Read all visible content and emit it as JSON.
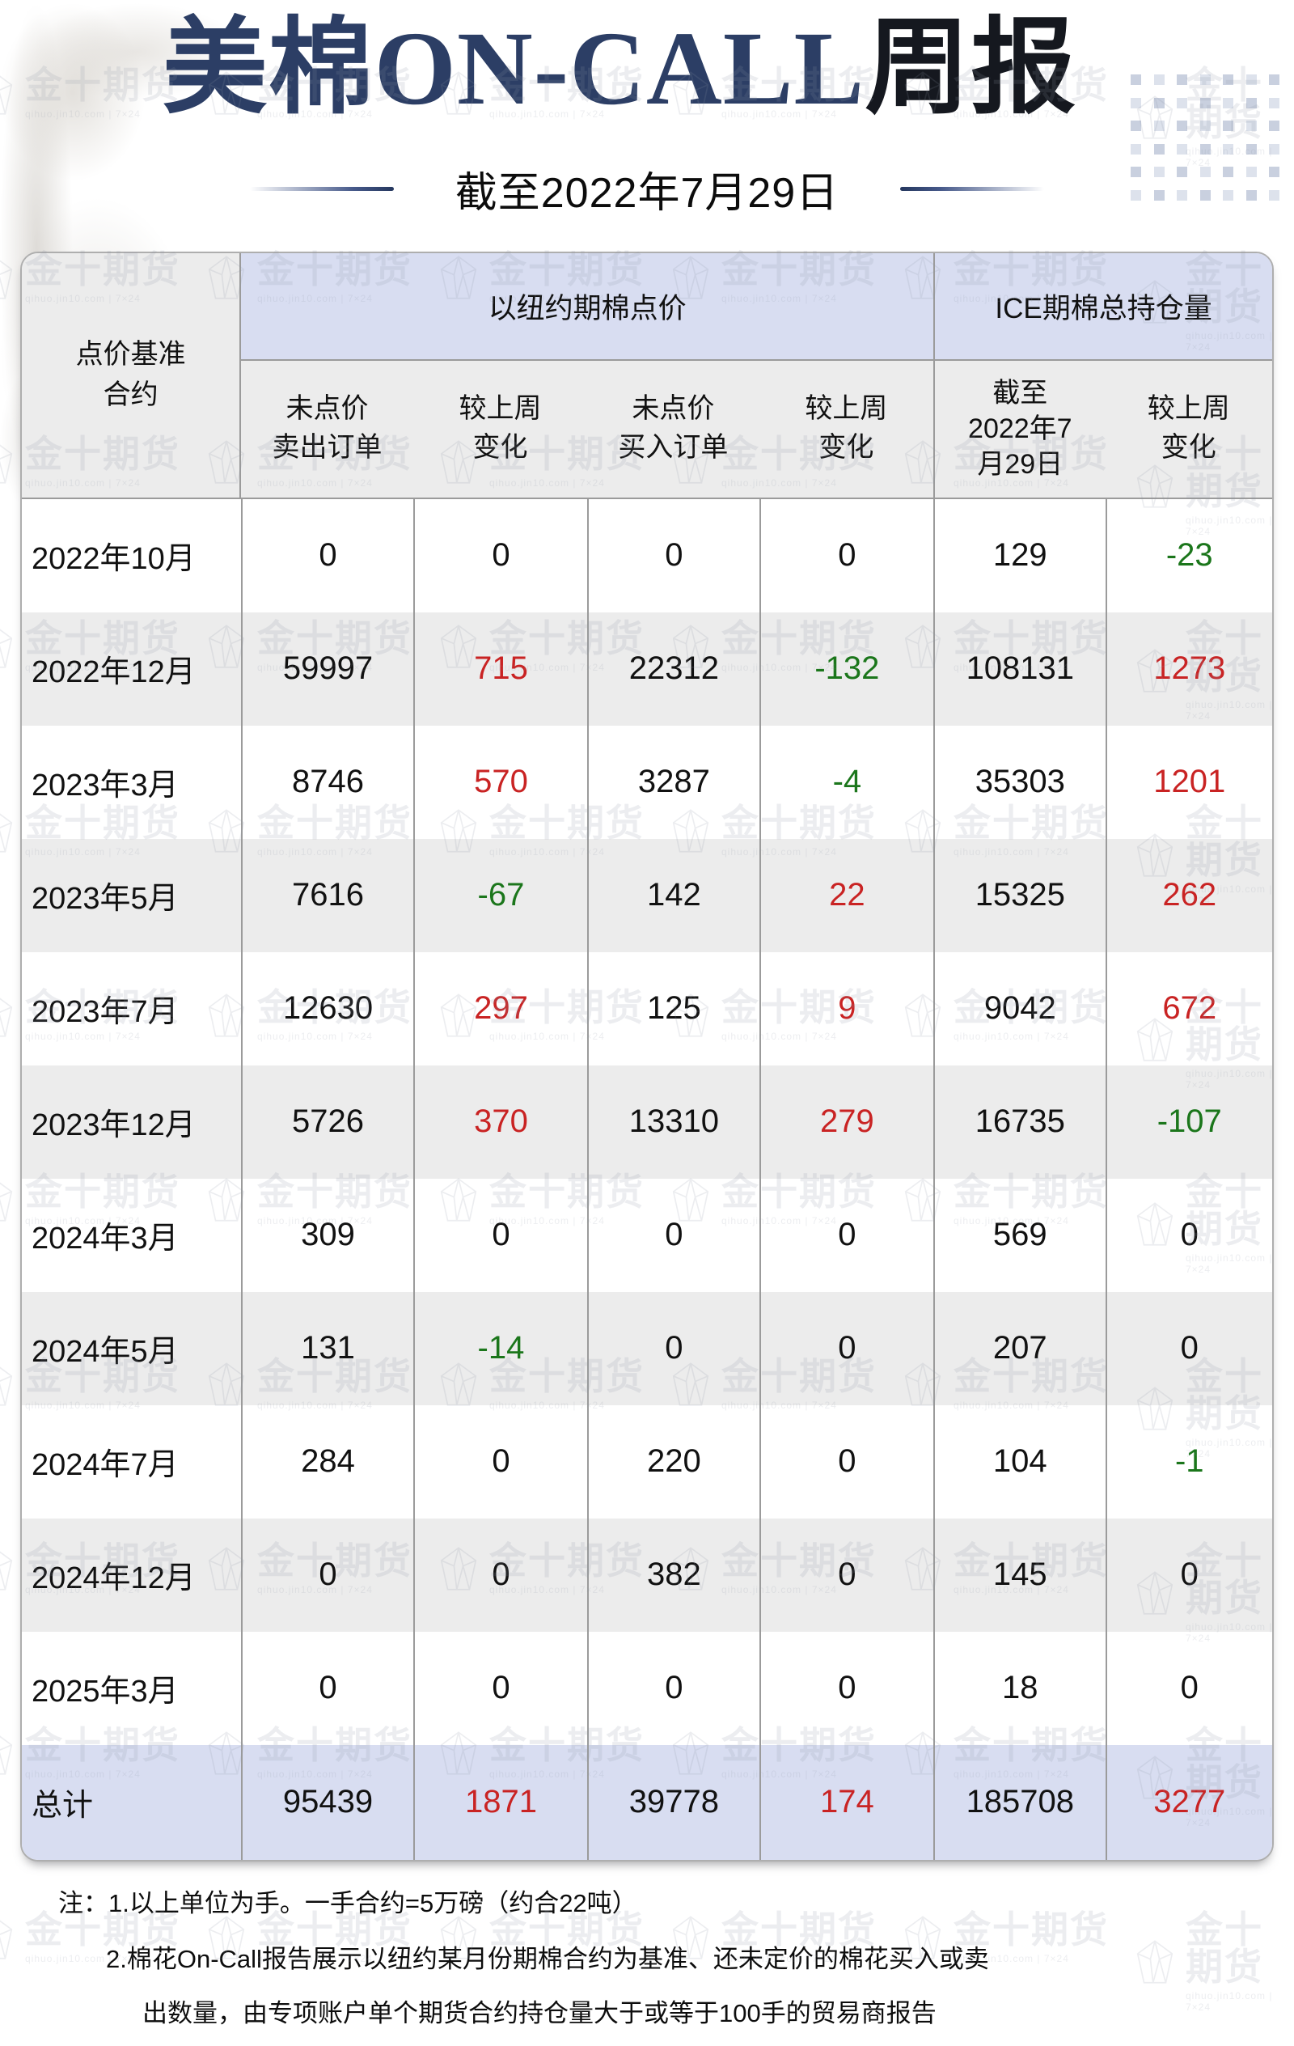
{
  "title": {
    "highlight": "美棉ON-CALL",
    "rest": "周报"
  },
  "subtitle": "截至2022年7月29日",
  "watermark": {
    "text": "金十期货",
    "subtext": "qihuo.jin10.com | 7×24"
  },
  "table": {
    "corner_header": "点价基准\n合约",
    "group_headers": [
      "以纽约期棉点价",
      "ICE期棉总持仓量"
    ],
    "sub_headers": [
      "未点价\n卖出订单",
      "较上周\n变化",
      "未点价\n买入订单",
      "较上周\n变化",
      "截至\n2022年7\n月29日",
      "较上周\n变化"
    ],
    "rows": [
      {
        "label": "2022年10月",
        "values": [
          0,
          0,
          0,
          0,
          129,
          -23
        ]
      },
      {
        "label": "2022年12月",
        "values": [
          59997,
          715,
          22312,
          -132,
          108131,
          1273
        ]
      },
      {
        "label": "2023年3月",
        "values": [
          8746,
          570,
          3287,
          -4,
          35303,
          1201
        ]
      },
      {
        "label": "2023年5月",
        "values": [
          7616,
          -67,
          142,
          22,
          15325,
          262
        ]
      },
      {
        "label": "2023年7月",
        "values": [
          12630,
          297,
          125,
          9,
          9042,
          672
        ]
      },
      {
        "label": "2023年12月",
        "values": [
          5726,
          370,
          13310,
          279,
          16735,
          -107
        ]
      },
      {
        "label": "2024年3月",
        "values": [
          309,
          0,
          0,
          0,
          569,
          0
        ]
      },
      {
        "label": "2024年5月",
        "values": [
          131,
          -14,
          0,
          0,
          207,
          0
        ]
      },
      {
        "label": "2024年7月",
        "values": [
          284,
          0,
          220,
          0,
          104,
          -1
        ]
      },
      {
        "label": "2024年12月",
        "values": [
          0,
          0,
          382,
          0,
          145,
          0
        ]
      },
      {
        "label": "2025年3月",
        "values": [
          0,
          0,
          0,
          0,
          18,
          0
        ]
      }
    ],
    "total": {
      "label": "总计",
      "values": [
        95439,
        1871,
        39778,
        174,
        185708,
        3277
      ]
    }
  },
  "notes": [
    "注：1.以上单位为手。一手合约=5万磅（约合22吨）",
    "2.棉花On-Call报告展示以纽约某月份期棉合约为基准、还未定价的棉花买入或卖",
    "出数量，由专项账户单个期货合约持仓量大于或等于100手的贸易商报告"
  ],
  "colors": {
    "positive": "#c92323",
    "negative": "#1b761b",
    "accent_navy": "#2c3e65",
    "lavender": "#d8ddf1",
    "row_gray": "#ececec"
  }
}
